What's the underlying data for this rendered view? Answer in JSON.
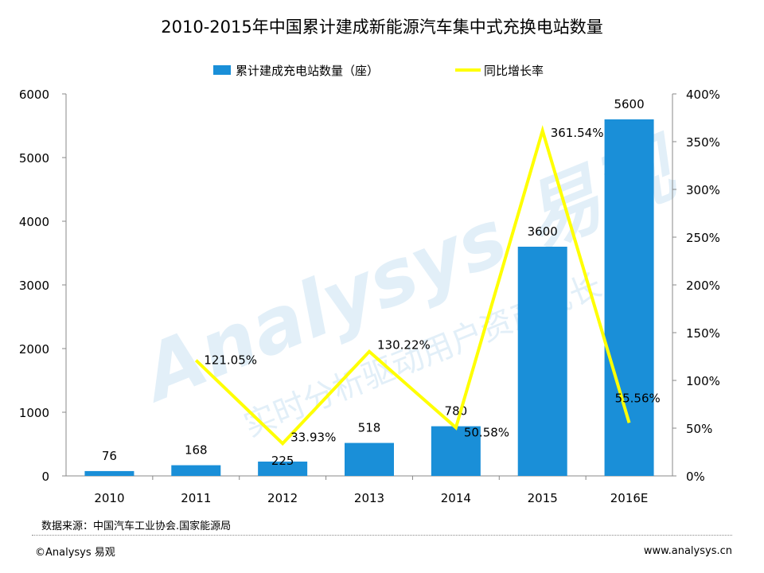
{
  "chart_data": {
    "type": "bar",
    "title": "2010-2015年中国累计建成新能源汽车集中式充换电站数量",
    "categories": [
      "2010",
      "2011",
      "2012",
      "2013",
      "2014",
      "2015",
      "2016E"
    ],
    "series": [
      {
        "name": "累计建成充电站数量（座）",
        "type": "bar",
        "axis": "left",
        "color": "#1a8fd8",
        "values": [
          76,
          168,
          225,
          518,
          780,
          3600,
          5600
        ],
        "labels": [
          "76",
          "168",
          "225",
          "518",
          "780",
          "3600",
          "5600"
        ]
      },
      {
        "name": "同比增长率",
        "type": "line",
        "axis": "right",
        "color": "#ffff00",
        "values": [
          null,
          121.05,
          33.93,
          130.22,
          50.58,
          361.54,
          55.56
        ],
        "labels": [
          "",
          "121.05%",
          "33.93%",
          "130.22%",
          "50.58%",
          "361.54%",
          "55.56%"
        ]
      }
    ],
    "y_left": {
      "min": 0,
      "max": 6000,
      "ticks": [
        "0",
        "1000",
        "2000",
        "3000",
        "4000",
        "5000",
        "6000"
      ]
    },
    "y_right": {
      "min": 0,
      "max": 400,
      "ticks": [
        "0%",
        "50%",
        "100%",
        "150%",
        "200%",
        "250%",
        "300%",
        "350%",
        "400%"
      ]
    },
    "legend_position": "top-center",
    "grid": false
  },
  "watermark": {
    "brand": "Analysys 易观",
    "slogan": "实时分析驱动用户资产成长"
  },
  "source": "数据来源：中国汽车工业协会.国家能源局",
  "footer": {
    "copyright": "©Analysys 易观",
    "website": "www.analysys.cn"
  }
}
